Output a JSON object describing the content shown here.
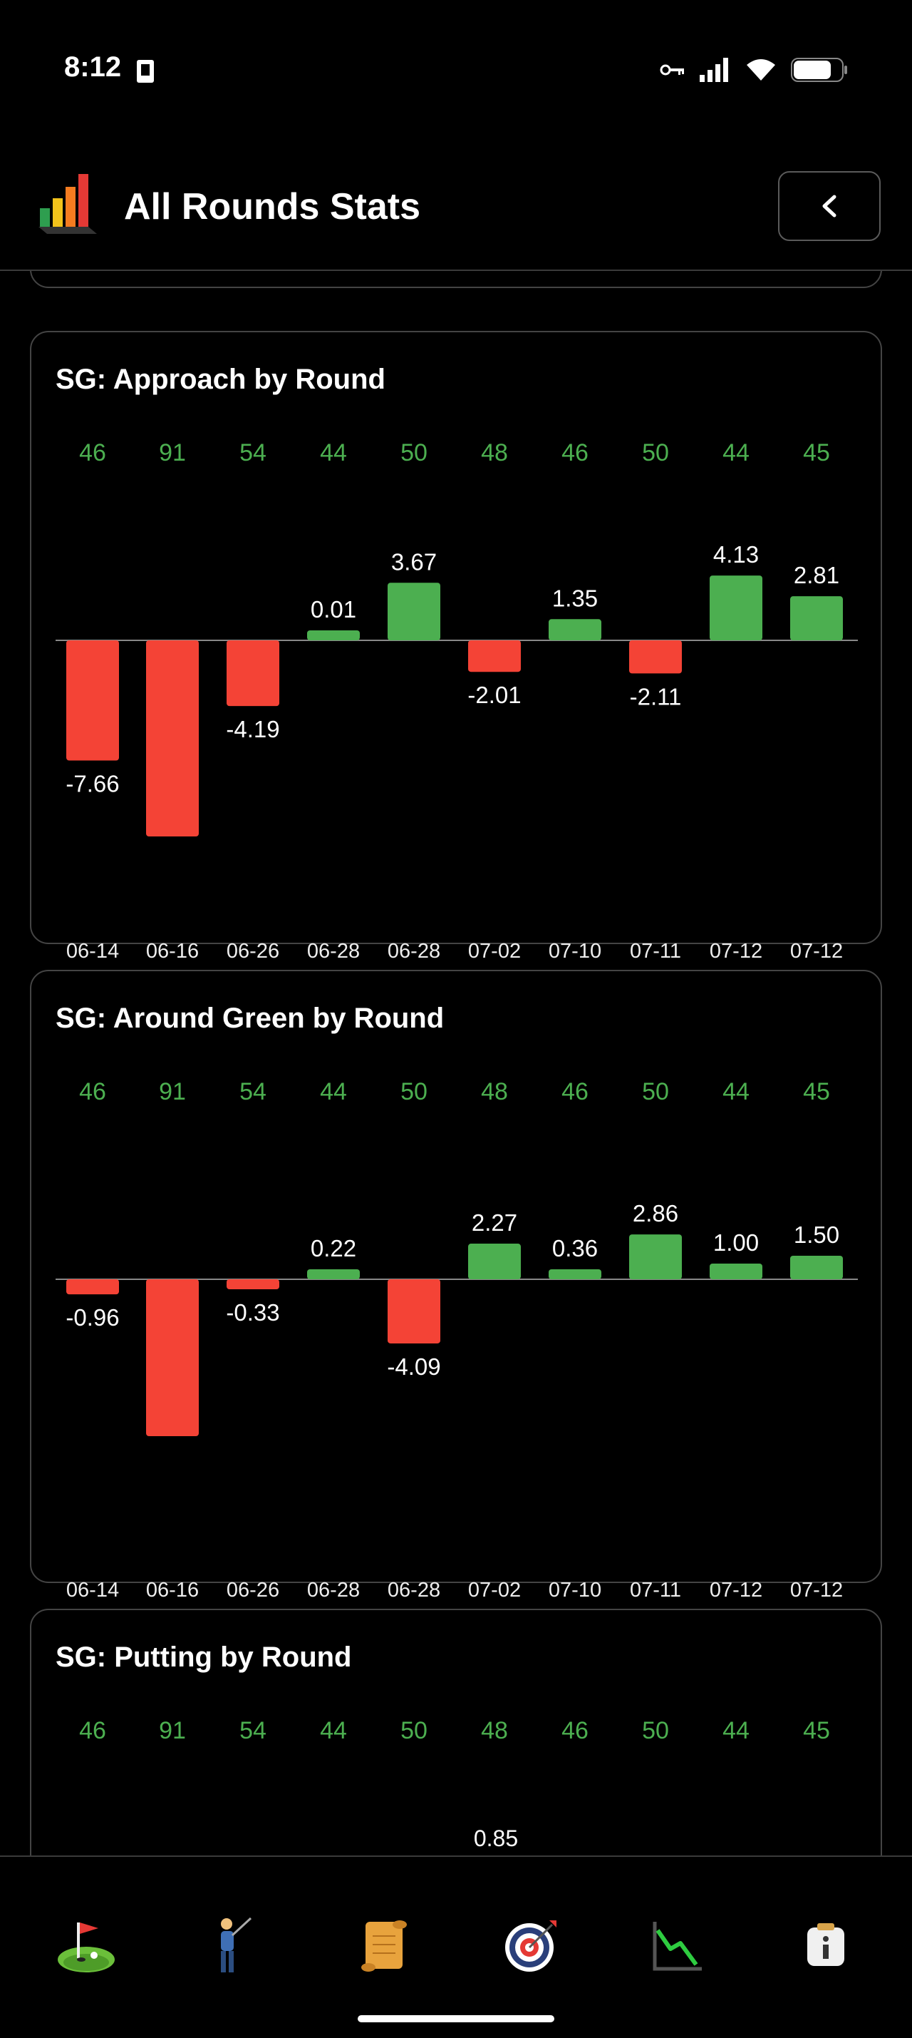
{
  "status_bar": {
    "time": "8:12"
  },
  "header": {
    "title": "All Rounds Stats",
    "back_label": "<"
  },
  "colors": {
    "positive": "#4caf50",
    "negative": "#f44336",
    "background": "#000000",
    "border": "#444444"
  },
  "charts": [
    {
      "title": "SG: Approach by Round",
      "scores": [
        "46",
        "91",
        "54",
        "44",
        "50",
        "48",
        "46",
        "50",
        "44",
        "45"
      ],
      "dates": [
        "06-14",
        "06-16",
        "06-26",
        "06-28",
        "06-28",
        "07-02",
        "07-10",
        "07-11",
        "07-12",
        "07-12"
      ],
      "values": [
        -7.66,
        -12.5,
        -4.19,
        0.01,
        3.67,
        -2.01,
        1.35,
        -2.11,
        4.13,
        2.81
      ],
      "labels": [
        "-7.66",
        "",
        "-4.19",
        "0.01",
        "3.67",
        "-2.01",
        "1.35",
        "-2.11",
        "4.13",
        "2.81"
      ]
    },
    {
      "title": "SG: Around Green by Round",
      "scores": [
        "46",
        "91",
        "54",
        "44",
        "50",
        "48",
        "46",
        "50",
        "44",
        "45"
      ],
      "dates": [
        "06-14",
        "06-16",
        "06-26",
        "06-28",
        "06-28",
        "07-02",
        "07-10",
        "07-11",
        "07-12",
        "07-12"
      ],
      "values": [
        -0.96,
        -10.0,
        -0.33,
        0.22,
        -4.09,
        2.27,
        0.36,
        2.86,
        1.0,
        1.5
      ],
      "labels": [
        "-0.96",
        "",
        "-0.33",
        "0.22",
        "-4.09",
        "2.27",
        "0.36",
        "2.86",
        "1.00",
        "1.50"
      ]
    },
    {
      "title": "SG: Putting by Round",
      "scores": [
        "46",
        "91",
        "54",
        "44",
        "50",
        "48",
        "46",
        "50",
        "44",
        "45"
      ],
      "visible_value_label": "0.85"
    }
  ],
  "chart_data": [
    {
      "type": "bar",
      "title": "SG: Approach by Round",
      "categories": [
        "06-14",
        "06-16",
        "06-26",
        "06-28",
        "06-28",
        "07-02",
        "07-10",
        "07-11",
        "07-12",
        "07-12"
      ],
      "values": [
        -7.66,
        -12.5,
        -4.19,
        0.01,
        3.67,
        -2.01,
        1.35,
        -2.11,
        4.13,
        2.81
      ],
      "top_labels": [
        "46",
        "91",
        "54",
        "44",
        "50",
        "48",
        "46",
        "50",
        "44",
        "45"
      ]
    },
    {
      "type": "bar",
      "title": "SG: Around Green by Round",
      "categories": [
        "06-14",
        "06-16",
        "06-26",
        "06-28",
        "06-28",
        "07-02",
        "07-10",
        "07-11",
        "07-12",
        "07-12"
      ],
      "values": [
        -0.96,
        -10.0,
        -0.33,
        0.22,
        -4.09,
        2.27,
        0.36,
        2.86,
        1.0,
        1.5
      ],
      "top_labels": [
        "46",
        "91",
        "54",
        "44",
        "50",
        "48",
        "46",
        "50",
        "44",
        "45"
      ]
    },
    {
      "type": "bar",
      "title": "SG: Putting by Round",
      "top_labels": [
        "46",
        "91",
        "54",
        "44",
        "50",
        "48",
        "46",
        "50",
        "44",
        "45"
      ],
      "visible_data_labels": [
        "0.85"
      ]
    }
  ],
  "nav": [
    {
      "name": "golf-green-icon"
    },
    {
      "name": "golfer-icon"
    },
    {
      "name": "scroll-icon"
    },
    {
      "name": "target-icon"
    },
    {
      "name": "trend-chart-icon"
    },
    {
      "name": "info-icon"
    }
  ]
}
